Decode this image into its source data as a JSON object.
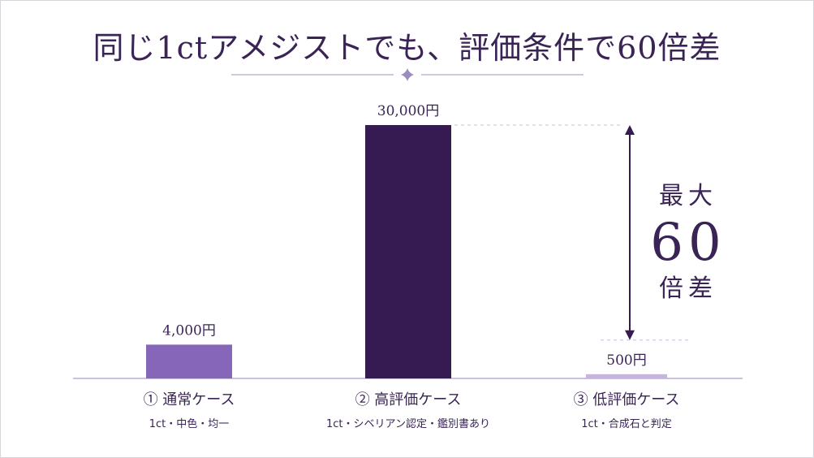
{
  "title": "同じ1ctアメジストでも、評価条件で60倍差",
  "colors": {
    "bar_normal": "#8566b8",
    "bar_high": "#361a52",
    "bar_low": "#c6b5e0",
    "text": "#3a2456",
    "axis": "#b8aed0"
  },
  "chart_data": {
    "type": "bar",
    "categories": [
      "① 通常ケース",
      "② 高評価ケース",
      "③ 低評価ケース"
    ],
    "subcategories": [
      "1ct・中色・均一",
      "1ct・シベリアン認定・鑑別書あり",
      "1ct・合成石と判定"
    ],
    "values": [
      4000,
      30000,
      500
    ],
    "value_labels": [
      "4,000円",
      "30,000円",
      "500円"
    ],
    "title": "同じ1ctアメジストでも、評価条件で60倍差",
    "ylim": [
      0,
      30000
    ],
    "grid": false,
    "annotation": {
      "line1": "最大",
      "line2": "60",
      "line3": "倍差",
      "from_value": 30000,
      "to_value": 500
    }
  }
}
